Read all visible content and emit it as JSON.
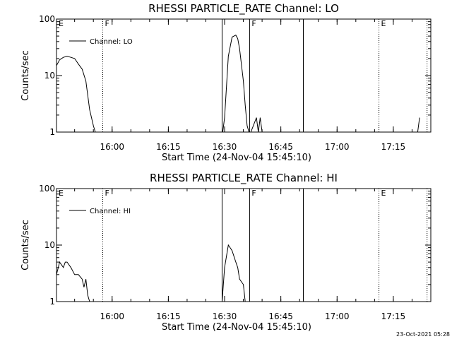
{
  "footer": {
    "timestamp": "23-Oct-2021 05:28"
  },
  "chart_data": [
    {
      "type": "line",
      "title": "RHESSI PARTICLE_RATE Channel: LO",
      "xlabel": "Start Time (24-Nov-04 15:45:10)",
      "ylabel": "Counts/sec",
      "yscale": "log",
      "ylim": [
        1,
        100
      ],
      "y_ticks": [
        {
          "value": 1,
          "label": "1"
        },
        {
          "value": 10,
          "label": "10"
        },
        {
          "value": 100,
          "label": "100"
        }
      ],
      "xlim": [
        "15:45:10",
        "17:25:00"
      ],
      "x_ticks": [
        "16:00",
        "16:15",
        "16:30",
        "16:45",
        "17:00",
        "17:15"
      ],
      "legend": {
        "label": "Channel: LO",
        "placement": "top-left"
      },
      "series": [
        {
          "x": [
            "15:45:10",
            "15:46:00",
            "15:47:00",
            "15:48:00",
            "15:49:00",
            "15:50:00",
            "15:51:00",
            "15:52:00",
            "15:53:00",
            "15:54:00",
            "15:55:00",
            "15:55:30",
            "16:29:30",
            "16:30:00",
            "16:31:00",
            "16:32:00",
            "16:33:00",
            "16:33:30",
            "16:34:00",
            "16:35:00",
            "16:35:30",
            "16:36:00",
            "16:36:30",
            "16:37:00",
            "16:38:30",
            "16:39:00",
            "16:39:30",
            "16:40:00",
            "17:21:30",
            "17:22:00"
          ],
          "y": [
            15,
            19,
            21,
            22,
            21,
            20,
            16,
            13,
            8,
            2.5,
            1.3,
            1,
            1,
            1.8,
            22,
            48,
            52,
            45,
            30,
            8,
            3,
            1.3,
            1,
            1,
            1.8,
            1,
            1.8,
            1,
            1,
            1.8
          ]
        }
      ],
      "event_lines": [
        {
          "x": "15:45:10",
          "label": "E",
          "style": "dotted"
        },
        {
          "x": "15:57:30",
          "label": "F",
          "style": "dotted"
        },
        {
          "x": "16:29:20",
          "label": "",
          "style": "solid"
        },
        {
          "x": "16:36:40",
          "label": "F",
          "style": "solid"
        },
        {
          "x": "16:51:00",
          "label": "",
          "style": "solid"
        },
        {
          "x": "17:11:10",
          "label": "E",
          "style": "dotted"
        },
        {
          "x": "17:24:00",
          "label": "",
          "style": "dotted"
        }
      ]
    },
    {
      "type": "line",
      "title": "RHESSI PARTICLE_RATE Channel: HI",
      "xlabel": "Start Time (24-Nov-04 15:45:10)",
      "ylabel": "Counts/sec",
      "yscale": "log",
      "ylim": [
        1,
        100
      ],
      "y_ticks": [
        {
          "value": 1,
          "label": "1"
        },
        {
          "value": 10,
          "label": "10"
        },
        {
          "value": 100,
          "label": "100"
        }
      ],
      "xlim": [
        "15:45:10",
        "17:25:00"
      ],
      "x_ticks": [
        "16:00",
        "16:15",
        "16:30",
        "16:45",
        "17:00",
        "17:15"
      ],
      "legend": {
        "label": "Channel: HI",
        "placement": "top-left"
      },
      "series": [
        {
          "x": [
            "15:45:10",
            "15:46:00",
            "15:47:00",
            "15:47:30",
            "15:48:00",
            "15:49:00",
            "15:50:00",
            "15:51:00",
            "15:52:00",
            "15:52:30",
            "15:53:00",
            "15:53:30",
            "15:54:00",
            "16:29:20",
            "16:30:00",
            "16:31:00",
            "16:32:00",
            "16:33:00",
            "16:33:30",
            "16:34:00",
            "16:35:00",
            "16:35:30",
            "16:36:40"
          ],
          "y": [
            3,
            5,
            4,
            5,
            5,
            4,
            3,
            3,
            2.5,
            1.8,
            2.5,
            1.3,
            1,
            1,
            4,
            10,
            8,
            5,
            4,
            2.5,
            2,
            1,
            1
          ]
        }
      ],
      "event_lines": [
        {
          "x": "15:45:10",
          "label": "E",
          "style": "dotted"
        },
        {
          "x": "15:57:30",
          "label": "F",
          "style": "dotted"
        },
        {
          "x": "16:29:20",
          "label": "",
          "style": "solid"
        },
        {
          "x": "16:36:40",
          "label": "F",
          "style": "solid"
        },
        {
          "x": "16:51:00",
          "label": "",
          "style": "solid"
        },
        {
          "x": "17:11:10",
          "label": "E",
          "style": "dotted"
        },
        {
          "x": "17:24:00",
          "label": "",
          "style": "dotted"
        }
      ]
    }
  ]
}
